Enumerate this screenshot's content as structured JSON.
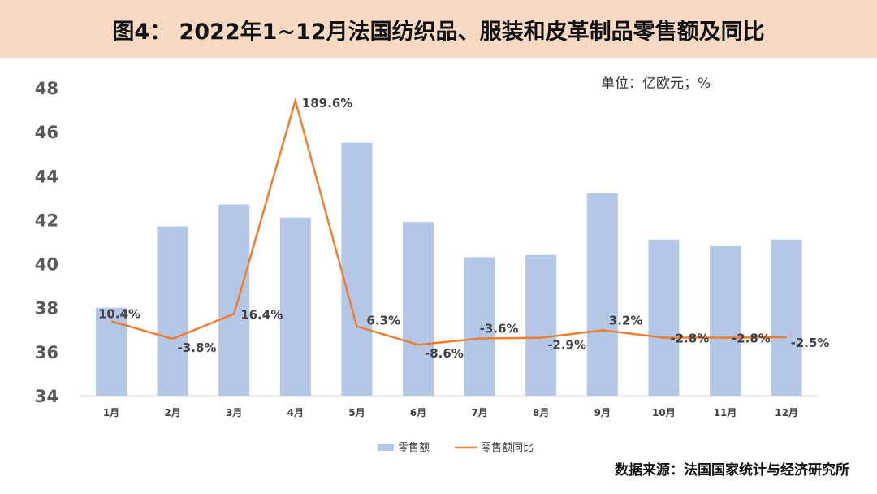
{
  "title": "图4： 2022年1~12月法国纺织品、服装和皮革制品零售额及同比",
  "unit": "单位：亿欧元；%",
  "source": "数据来源：法国国家统计与经济研究所",
  "colors": {
    "bar": "#b4c7e7",
    "line": "#ed7d31",
    "header": "#f8d9c3"
  },
  "chart_data": {
    "type": "bar+line",
    "categories": [
      "1月",
      "2月",
      "3月",
      "4月",
      "5月",
      "6月",
      "7月",
      "8月",
      "9月",
      "10月",
      "11月",
      "12月"
    ],
    "ylim": [
      34,
      48
    ],
    "yticks": [
      34,
      36,
      38,
      40,
      42,
      44,
      46,
      48
    ],
    "y2lim": [
      -50,
      200
    ],
    "grid": false,
    "legend": "bottom",
    "series": [
      {
        "name": "零售额",
        "type": "bar",
        "axis": "primary",
        "values": [
          38.0,
          41.7,
          42.7,
          42.1,
          45.5,
          41.9,
          40.3,
          40.4,
          43.2,
          41.1,
          40.8,
          41.1
        ]
      },
      {
        "name": "零售额同比",
        "type": "line",
        "axis": "secondary",
        "values": [
          10.4,
          -3.8,
          16.4,
          189.6,
          6.3,
          -8.6,
          -3.6,
          -2.9,
          3.2,
          -2.8,
          -2.8,
          -2.5
        ],
        "labels": [
          "10.4%",
          "-3.8%",
          "16.4%",
          "189.6%",
          "6.3%",
          "-8.6%",
          "-3.6%",
          "-2.9%",
          "3.2%",
          "-2.8%",
          "-2.8%",
          "-2.5%"
        ]
      }
    ]
  }
}
